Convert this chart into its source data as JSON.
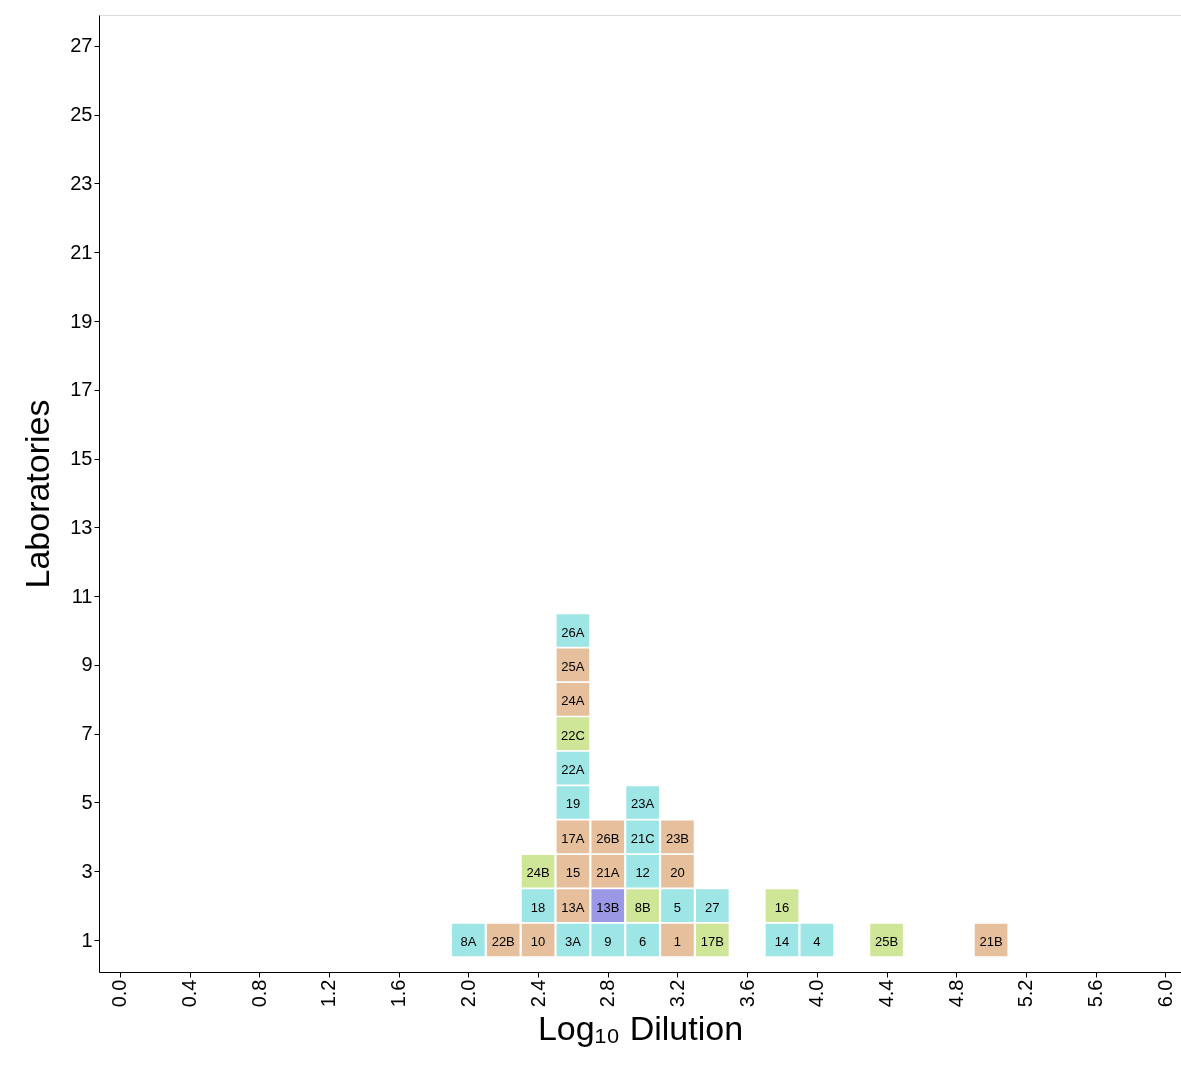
{
  "chart_data": {
    "type": "scatter",
    "marker": "square",
    "xlabel": "Log₁₀ Dilution",
    "ylabel": "Laboratories",
    "x": [
      2.0,
      2.2,
      2.4,
      2.6,
      2.8,
      3.0,
      3.2,
      3.4,
      3.8,
      4.0,
      4.4,
      5.0,
      2.4,
      2.6,
      2.8,
      3.0,
      3.2,
      3.4,
      3.8,
      2.4,
      2.6,
      2.8,
      3.0,
      3.2,
      2.6,
      2.8,
      3.0,
      3.2,
      2.6,
      3.0,
      2.6,
      2.6,
      2.6,
      2.6,
      2.6
    ],
    "values": [
      1,
      1,
      1,
      1,
      1,
      1,
      1,
      1,
      1,
      1,
      1,
      1,
      2,
      2,
      2,
      2,
      2,
      2,
      2,
      3,
      3,
      3,
      3,
      3,
      4,
      4,
      4,
      4,
      5,
      5,
      6,
      7,
      8,
      9,
      10
    ],
    "annotations": [
      {
        "text": "8A",
        "x": 2.0,
        "y": 1
      },
      {
        "text": "22B",
        "x": 2.2,
        "y": 1
      },
      {
        "text": "10",
        "x": 2.4,
        "y": 1
      },
      {
        "text": "3A",
        "x": 2.6,
        "y": 1
      },
      {
        "text": "9",
        "x": 2.8,
        "y": 1
      },
      {
        "text": "6",
        "x": 3.0,
        "y": 1
      },
      {
        "text": "1",
        "x": 3.2,
        "y": 1
      },
      {
        "text": "17B",
        "x": 3.4,
        "y": 1
      },
      {
        "text": "14",
        "x": 3.8,
        "y": 1
      },
      {
        "text": "4",
        "x": 4.0,
        "y": 1
      },
      {
        "text": "25B",
        "x": 4.4,
        "y": 1
      },
      {
        "text": "21B",
        "x": 5.0,
        "y": 1
      },
      {
        "text": "18",
        "x": 2.4,
        "y": 2
      },
      {
        "text": "13A",
        "x": 2.6,
        "y": 2
      },
      {
        "text": "13B",
        "x": 2.8,
        "y": 2
      },
      {
        "text": "8B",
        "x": 3.0,
        "y": 2
      },
      {
        "text": "5",
        "x": 3.2,
        "y": 2
      },
      {
        "text": "27",
        "x": 3.4,
        "y": 2
      },
      {
        "text": "16",
        "x": 3.8,
        "y": 2
      },
      {
        "text": "24B",
        "x": 2.4,
        "y": 3
      },
      {
        "text": "15",
        "x": 2.6,
        "y": 3
      },
      {
        "text": "21A",
        "x": 2.8,
        "y": 3
      },
      {
        "text": "12",
        "x": 3.0,
        "y": 3
      },
      {
        "text": "20",
        "x": 3.2,
        "y": 3
      },
      {
        "text": "17A",
        "x": 2.6,
        "y": 4
      },
      {
        "text": "26B",
        "x": 2.8,
        "y": 4
      },
      {
        "text": "21C",
        "x": 3.0,
        "y": 4
      },
      {
        "text": "23B",
        "x": 3.2,
        "y": 4
      },
      {
        "text": "19",
        "x": 2.6,
        "y": 5
      },
      {
        "text": "23A",
        "x": 3.0,
        "y": 5
      },
      {
        "text": "22A",
        "x": 2.6,
        "y": 6
      },
      {
        "text": "22C",
        "x": 2.6,
        "y": 7
      },
      {
        "text": "24A",
        "x": 2.6,
        "y": 8
      },
      {
        "text": "25A",
        "x": 2.6,
        "y": 9
      },
      {
        "text": "26A",
        "x": 2.6,
        "y": 10
      }
    ],
    "colors": [
      "#9ee6e6",
      "#e6c09c",
      "#e6c09c",
      "#9ee6e6",
      "#9ee6e6",
      "#9ee6e6",
      "#e6c09c",
      "#cfe598",
      "#9ee6e6",
      "#9ee6e6",
      "#cfe598",
      "#e6c09c",
      "#9ee6e6",
      "#e6c09c",
      "#9b98e6",
      "#cfe598",
      "#9ee6e6",
      "#9ee6e6",
      "#cfe598",
      "#cfe598",
      "#e6c09c",
      "#e6c09c",
      "#9ee6e6",
      "#e6c09c",
      "#e6c09c",
      "#e6c09c",
      "#9ee6e6",
      "#e6c09c",
      "#9ee6e6",
      "#9ee6e6",
      "#9ee6e6",
      "#cfe598",
      "#e6c09c",
      "#e6c09c",
      "#9ee6e6"
    ],
    "xlim": [
      -0.12,
      6.09
    ],
    "ylim": [
      0.07,
      27.9
    ],
    "xticks": [
      {
        "value": 0,
        "label": "0.0"
      },
      0.4,
      0.8,
      1.2,
      1.6,
      {
        "value": 2,
        "label": "2.0"
      },
      2.4,
      2.8,
      3.2,
      3.6,
      {
        "value": 4,
        "label": "4.0"
      },
      4.4,
      4.8,
      5.2,
      5.6,
      {
        "value": 6,
        "label": "6.0"
      }
    ],
    "yticks": [
      1,
      3,
      5,
      7,
      9,
      11,
      13,
      15,
      17,
      19,
      21,
      23,
      25,
      27
    ],
    "grid": false
  }
}
